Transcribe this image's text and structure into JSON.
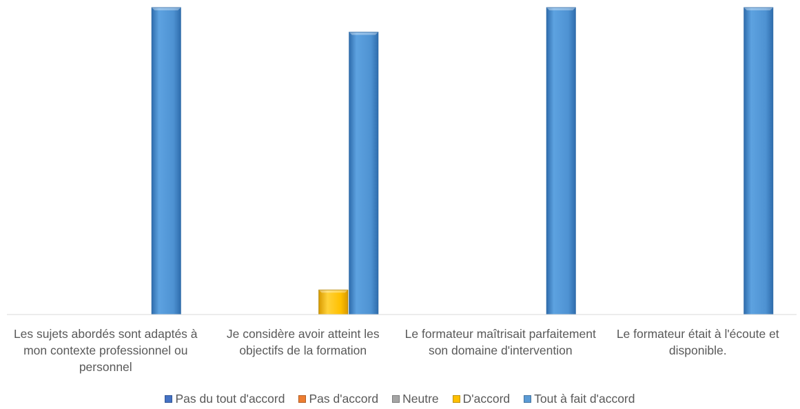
{
  "chart_data": {
    "type": "bar",
    "title": "",
    "xlabel": "",
    "ylabel": "",
    "ylim": [
      0,
      100
    ],
    "grid": false,
    "legend_position": "bottom",
    "categories": [
      "Les sujets abordés sont adaptés à mon contexte professionnel ou personnel",
      "Je considère avoir atteint les objectifs de la formation",
      "Le formateur maîtrisait parfaitement son domaine d'intervention",
      "Le formateur était à l'écoute et disponible."
    ],
    "series": [
      {
        "name": "Pas du tout d'accord",
        "color": "#4472C4",
        "values": [
          0,
          0,
          0,
          0
        ]
      },
      {
        "name": "Pas d'accord",
        "color": "#ED7D31",
        "values": [
          0,
          0,
          0,
          0
        ]
      },
      {
        "name": "Neutre",
        "color": "#A5A5A5",
        "values": [
          0,
          0,
          0,
          0
        ]
      },
      {
        "name": "D'accord",
        "color": "#FFC000",
        "values": [
          0,
          8,
          0,
          0
        ]
      },
      {
        "name": "Tout à fait d'accord",
        "color": "#5B9BD5",
        "values": [
          100,
          92,
          100,
          100
        ]
      }
    ]
  }
}
